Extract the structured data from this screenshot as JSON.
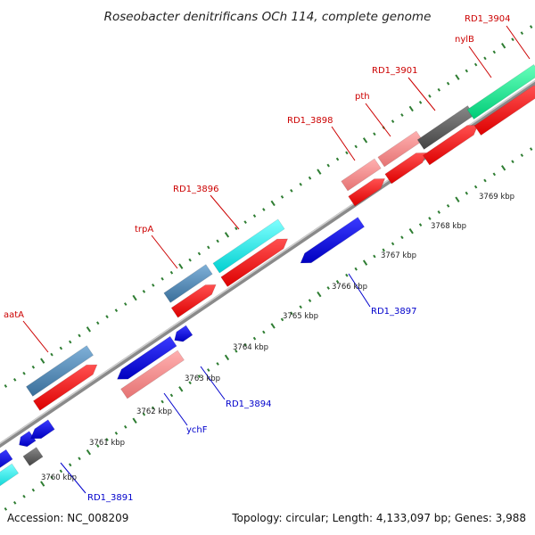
{
  "title": "Roseobacter denitrificans OCh 114, complete genome",
  "accession": "Accession: NC_008209",
  "summary": "Topology: circular; Length: 4,133,097 bp; Genes: 3,988",
  "colors": {
    "backbone": "#999999",
    "tick": "#2e7d32",
    "label_top": "#cc0000",
    "label_bottom": "#0000cc",
    "steelblue": "#4682b4",
    "red": "#ff0000",
    "blue": "#0000ee",
    "pink": "#f08080",
    "cyan": "#00f0f0",
    "gray": "#555555",
    "green": "#00ee88"
  },
  "ticks": [
    "3760 kbp",
    "3761 kbp",
    "3762 kbp",
    "3763 kbp",
    "3764 kbp",
    "3765 kbp",
    "3766 kbp",
    "3767 kbp",
    "3768 kbp",
    "3769 kbp"
  ],
  "genes_top": [
    "aatA",
    "trpA",
    "RD1_3896",
    "RD1_3898",
    "pth",
    "RD1_3901",
    "nylB",
    "RD1_3904"
  ],
  "genes_bottom": [
    "RD1_3891",
    "ychF",
    "RD1_3894",
    "RD1_3897"
  ]
}
